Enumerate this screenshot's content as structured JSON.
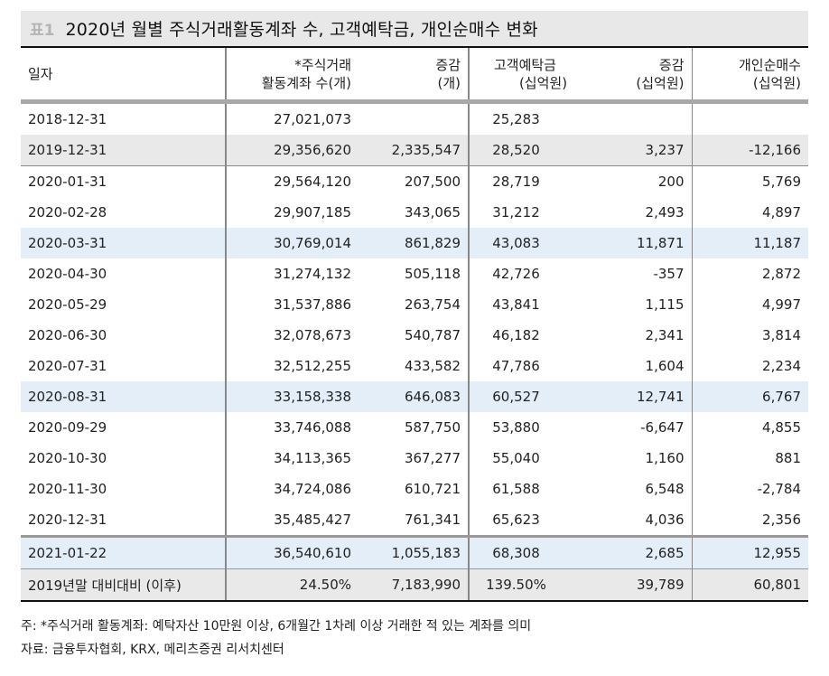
{
  "title": {
    "tag": "표1",
    "text": "2020년 월별 주식거래활동계좌 수, 고객예탁금, 개인순매수 변화"
  },
  "table": {
    "headers": [
      {
        "line1": "일자",
        "line2": ""
      },
      {
        "line1": "*주식거래",
        "line2": "활동계좌 수(개)"
      },
      {
        "line1": "증감",
        "line2": "(개)"
      },
      {
        "line1": "고객예탁금",
        "line2": "(십억원)"
      },
      {
        "line1": "증감",
        "line2": "(십억원)"
      },
      {
        "line1": "개인순매수",
        "line2": "(십억원)"
      }
    ],
    "rows": [
      {
        "date": "2018-12-31",
        "accounts": "27,021,073",
        "accounts_change": "",
        "deposits": "25,283",
        "deposits_change": "",
        "net_buy": ""
      },
      {
        "date": "2019-12-31",
        "accounts": "29,356,620",
        "accounts_change": "2,335,547",
        "deposits": "28,520",
        "deposits_change": "3,237",
        "net_buy": "-12,166"
      },
      {
        "date": "2020-01-31",
        "accounts": "29,564,120",
        "accounts_change": "207,500",
        "deposits": "28,719",
        "deposits_change": "200",
        "net_buy": "5,769"
      },
      {
        "date": "2020-02-28",
        "accounts": "29,907,185",
        "accounts_change": "343,065",
        "deposits": "31,212",
        "deposits_change": "2,493",
        "net_buy": "4,897"
      },
      {
        "date": "2020-03-31",
        "accounts": "30,769,014",
        "accounts_change": "861,829",
        "deposits": "43,083",
        "deposits_change": "11,871",
        "net_buy": "11,187"
      },
      {
        "date": "2020-04-30",
        "accounts": "31,274,132",
        "accounts_change": "505,118",
        "deposits": "42,726",
        "deposits_change": "-357",
        "net_buy": "2,872"
      },
      {
        "date": "2020-05-29",
        "accounts": "31,537,886",
        "accounts_change": "263,754",
        "deposits": "43,841",
        "deposits_change": "1,115",
        "net_buy": "4,997"
      },
      {
        "date": "2020-06-30",
        "accounts": "32,078,673",
        "accounts_change": "540,787",
        "deposits": "46,182",
        "deposits_change": "2,341",
        "net_buy": "3,814"
      },
      {
        "date": "2020-07-31",
        "accounts": "32,512,255",
        "accounts_change": "433,582",
        "deposits": "47,786",
        "deposits_change": "1,604",
        "net_buy": "2,234"
      },
      {
        "date": "2020-08-31",
        "accounts": "33,158,338",
        "accounts_change": "646,083",
        "deposits": "60,527",
        "deposits_change": "12,741",
        "net_buy": "6,767"
      },
      {
        "date": "2020-09-29",
        "accounts": "33,746,088",
        "accounts_change": "587,750",
        "deposits": "53,880",
        "deposits_change": "-6,647",
        "net_buy": "4,855"
      },
      {
        "date": "2020-10-30",
        "accounts": "34,113,365",
        "accounts_change": "367,277",
        "deposits": "55,040",
        "deposits_change": "1,160",
        "net_buy": "881"
      },
      {
        "date": "2020-11-30",
        "accounts": "34,724,086",
        "accounts_change": "610,721",
        "deposits": "61,588",
        "deposits_change": "6,548",
        "net_buy": "-2,784"
      },
      {
        "date": "2020-12-31",
        "accounts": "35,485,427",
        "accounts_change": "761,341",
        "deposits": "65,623",
        "deposits_change": "4,036",
        "net_buy": "2,356"
      },
      {
        "date": "2021-01-22",
        "accounts": "36,540,610",
        "accounts_change": "1,055,183",
        "deposits": "68,308",
        "deposits_change": "2,685",
        "net_buy": "12,955"
      },
      {
        "date": "2019년말 대비대비 (이후)",
        "accounts": "24.50%",
        "accounts_change": "7,183,990",
        "deposits": "139.50%",
        "deposits_change": "39,789",
        "net_buy": "60,801"
      }
    ]
  },
  "colors": {
    "title_bg": "#e8e8e8",
    "highlight_blue": "#e4eef8",
    "row_gray": "#e9e9e9",
    "header_bar": "#a8a8a8"
  },
  "notes": {
    "note": "주: *주식거래 활동계좌: 예탁자산 10만원 이상, 6개월간 1차례 이상 거래한 적 있는 계좌를 의미",
    "source": "자료: 금융투자협회, KRX, 메리츠증권 리서치센터"
  }
}
